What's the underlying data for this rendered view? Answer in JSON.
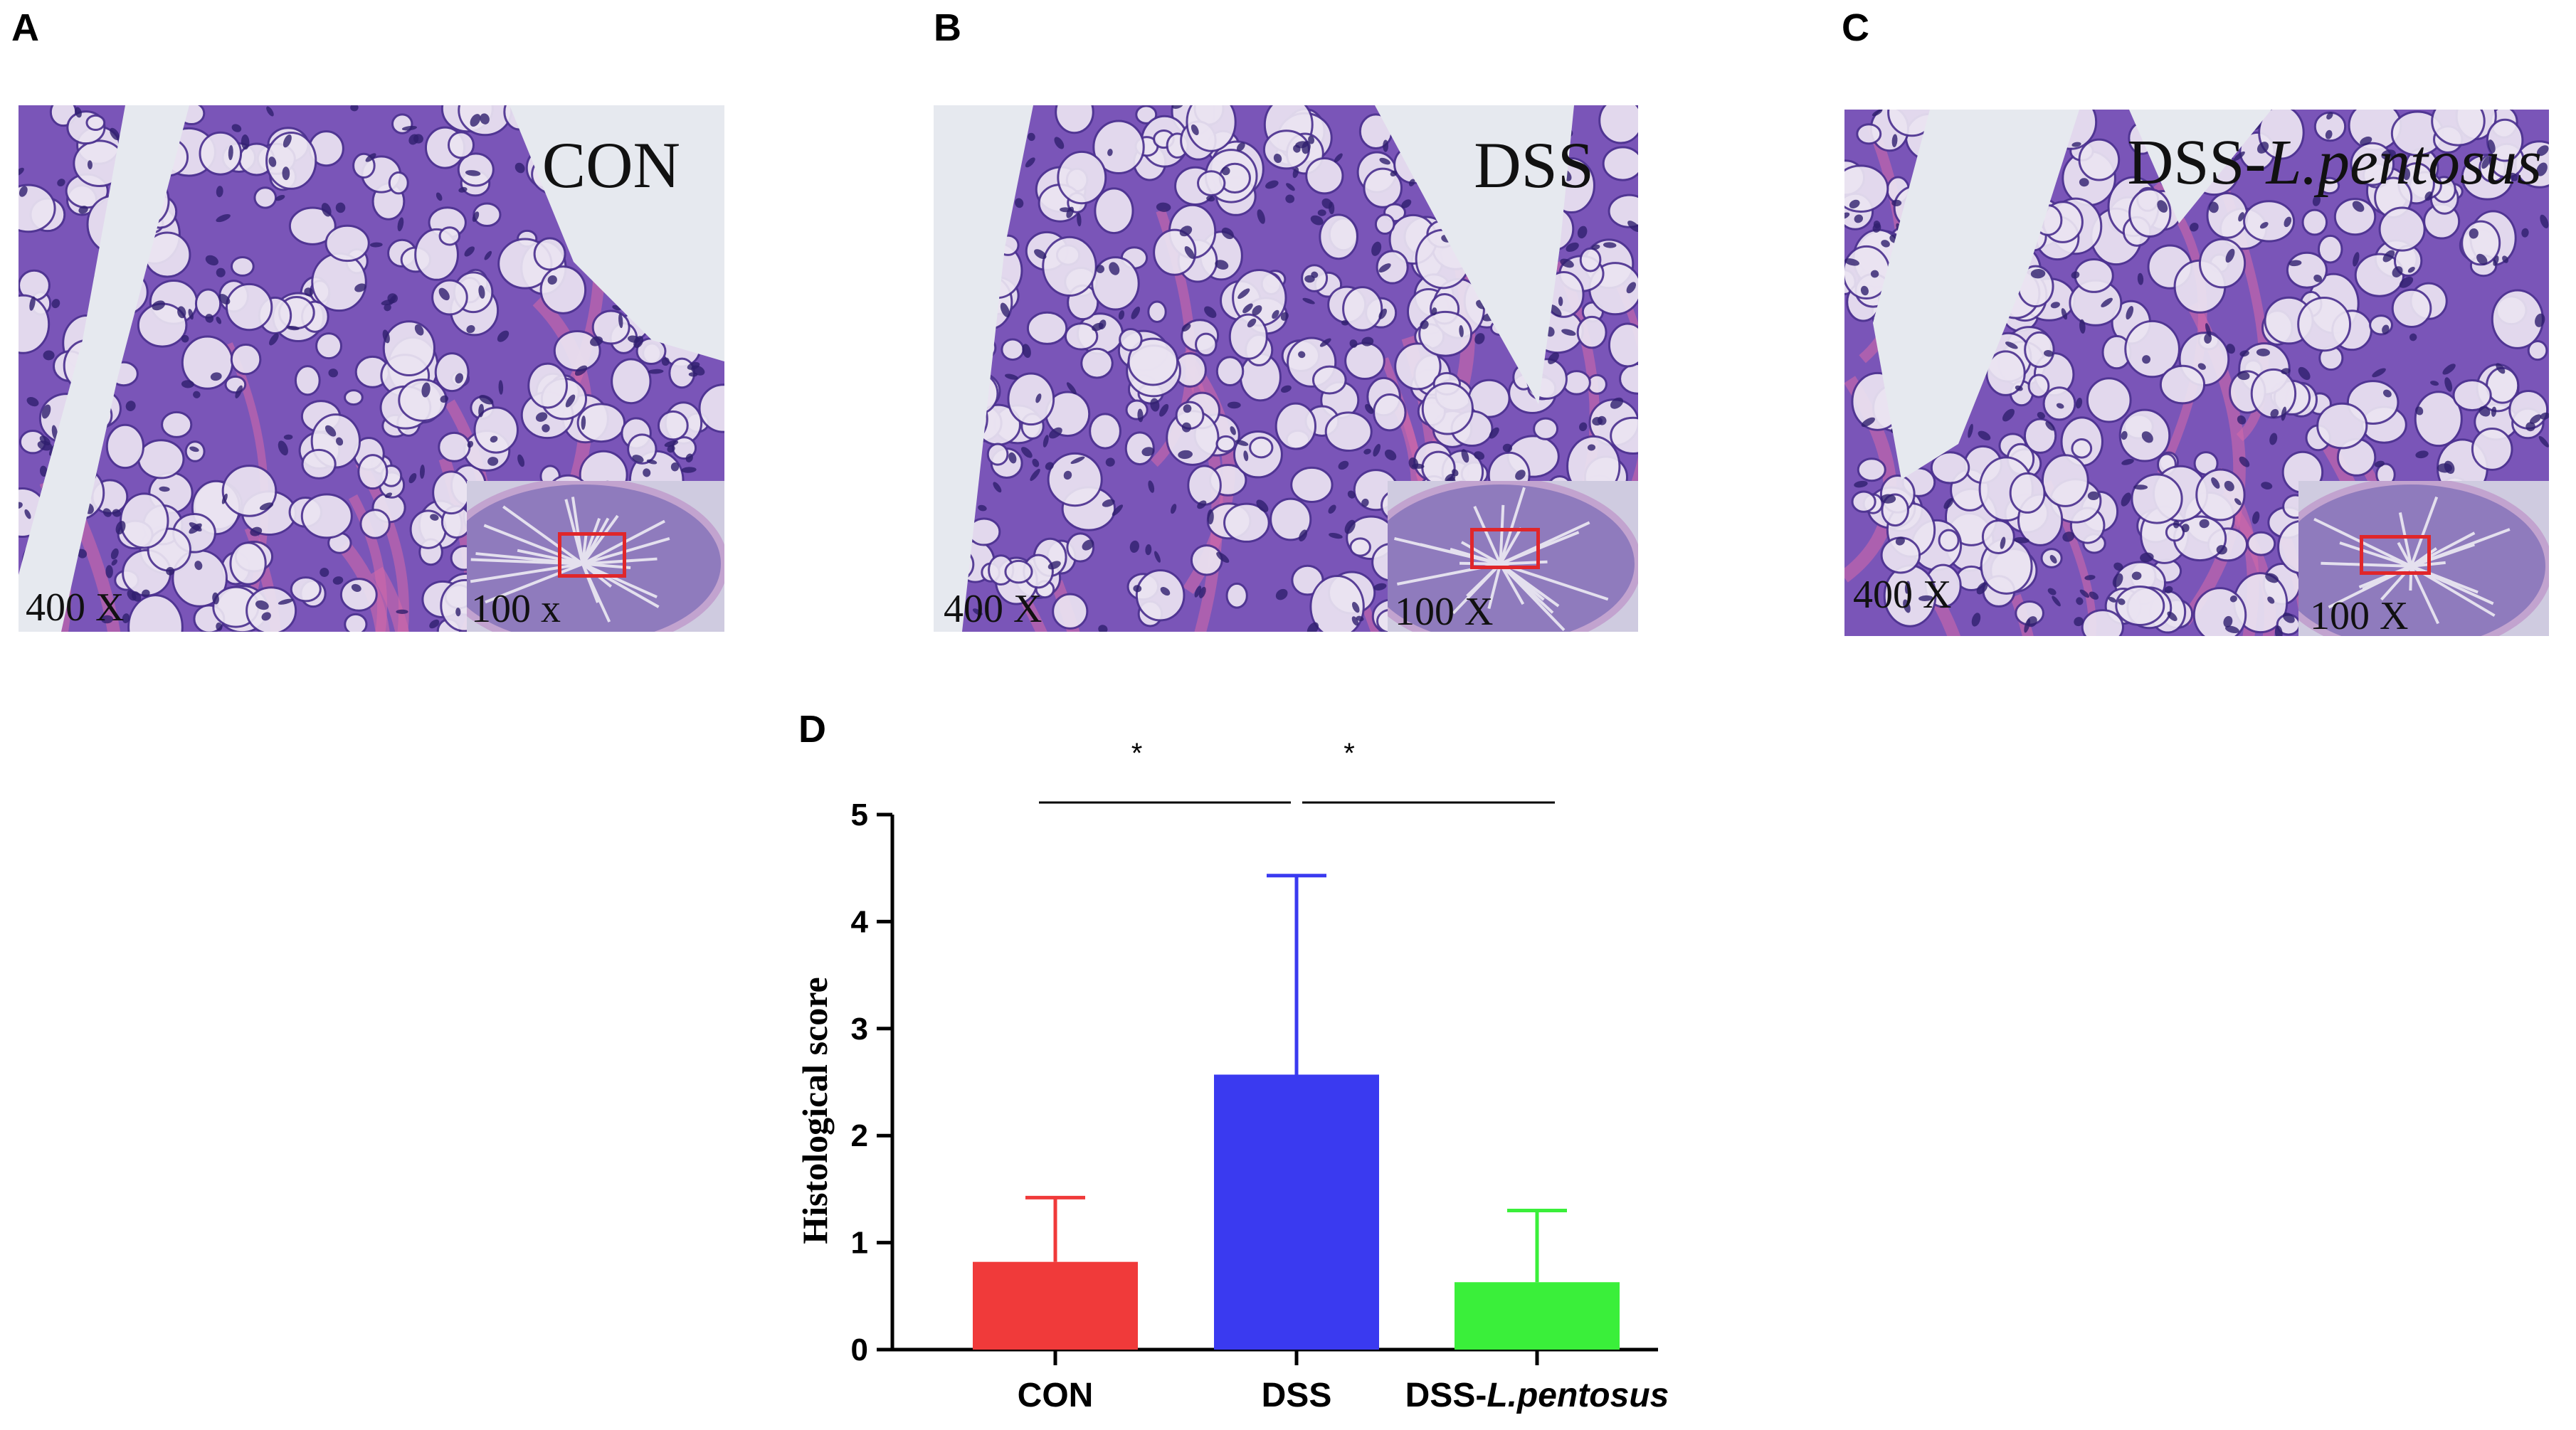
{
  "panels": {
    "a": {
      "letter": "A",
      "group_label": "CON",
      "mag_main": "400 X",
      "mag_inset": "100 x"
    },
    "b": {
      "letter": "B",
      "group_label": "DSS",
      "mag_main": "400 X",
      "mag_inset": "100 X"
    },
    "c": {
      "letter": "C",
      "group_label_prefix": "DSS-",
      "group_label_species": "L.pentosus",
      "mag_main": "400 X",
      "mag_inset": "100 X"
    },
    "d": {
      "letter": "D"
    }
  },
  "colors": {
    "stain_purple": "#7a55b8",
    "stain_pink": "#d56aa8",
    "lumen": "#e6e9ef",
    "inset_box": "#e0262a",
    "con": "#f03a3a",
    "dss": "#3a3af0",
    "dss_lp": "#3aef3a"
  },
  "chart_data": {
    "type": "bar",
    "categories": [
      "CON",
      "DSS",
      "DSS-L.pentosus"
    ],
    "category_parts": [
      {
        "prefix": "CON",
        "italic": ""
      },
      {
        "prefix": "DSS",
        "italic": ""
      },
      {
        "prefix": "DSS-",
        "italic": "L.pentosus"
      }
    ],
    "values": [
      0.82,
      2.57,
      0.63
    ],
    "errors": [
      0.6,
      1.86,
      0.67
    ],
    "ylabel": "Histological score",
    "ylim": [
      0,
      5
    ],
    "yticks": [
      "0",
      "1",
      "2",
      "3",
      "4",
      "5"
    ],
    "grid": false,
    "significance": [
      {
        "from": 0,
        "to": 1,
        "label": "*"
      },
      {
        "from": 1,
        "to": 2,
        "label": "*"
      }
    ]
  }
}
